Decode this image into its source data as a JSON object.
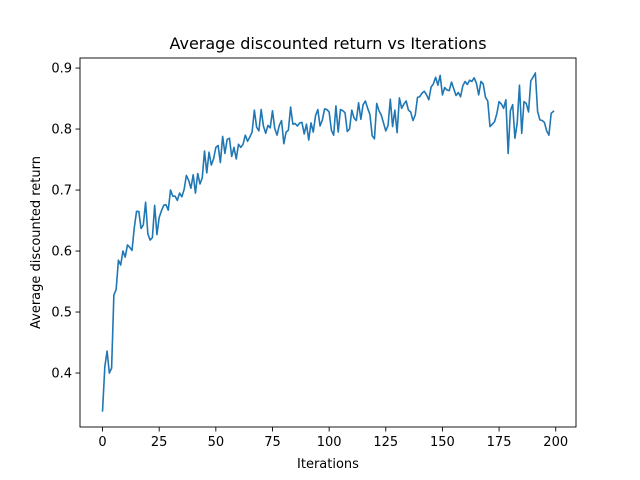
{
  "chart_data": {
    "type": "line",
    "title": "Average discounted return vs Iterations",
    "xlabel": "Iterations",
    "ylabel": "Average discounted return",
    "xlim": [
      -9.95,
      208.95
    ],
    "ylim": [
      0.3115,
      0.9165
    ],
    "xticks": [
      0,
      25,
      50,
      75,
      100,
      125,
      150,
      175,
      200
    ],
    "yticks": [
      0.4,
      0.5,
      0.6,
      0.7,
      0.8,
      0.9
    ],
    "ytick_labels": [
      "0.4",
      "0.5",
      "0.6",
      "0.7",
      "0.8",
      "0.9"
    ],
    "grid": false,
    "series": [
      {
        "color": "#1f77b4",
        "x_start": 0,
        "x_step": 1,
        "values": [
          0.338,
          0.41,
          0.436,
          0.4,
          0.408,
          0.528,
          0.537,
          0.585,
          0.577,
          0.6,
          0.59,
          0.61,
          0.606,
          0.601,
          0.638,
          0.665,
          0.665,
          0.637,
          0.643,
          0.68,
          0.628,
          0.618,
          0.622,
          0.675,
          0.627,
          0.655,
          0.666,
          0.675,
          0.676,
          0.667,
          0.7,
          0.69,
          0.69,
          0.683,
          0.695,
          0.689,
          0.701,
          0.724,
          0.716,
          0.703,
          0.725,
          0.695,
          0.727,
          0.71,
          0.72,
          0.764,
          0.728,
          0.762,
          0.741,
          0.751,
          0.77,
          0.773,
          0.745,
          0.788,
          0.76,
          0.783,
          0.785,
          0.755,
          0.77,
          0.751,
          0.775,
          0.77,
          0.775,
          0.79,
          0.78,
          0.787,
          0.795,
          0.831,
          0.803,
          0.797,
          0.832,
          0.805,
          0.793,
          0.806,
          0.802,
          0.83,
          0.801,
          0.79,
          0.806,
          0.814,
          0.776,
          0.795,
          0.798,
          0.836,
          0.808,
          0.809,
          0.805,
          0.81,
          0.811,
          0.792,
          0.808,
          0.782,
          0.81,
          0.795,
          0.822,
          0.832,
          0.805,
          0.815,
          0.833,
          0.832,
          0.828,
          0.798,
          0.79,
          0.838,
          0.795,
          0.832,
          0.83,
          0.827,
          0.796,
          0.8,
          0.831,
          0.818,
          0.814,
          0.843,
          0.816,
          0.84,
          0.846,
          0.834,
          0.824,
          0.789,
          0.784,
          0.842,
          0.83,
          0.823,
          0.81,
          0.797,
          0.806,
          0.849,
          0.804,
          0.831,
          0.794,
          0.851,
          0.834,
          0.841,
          0.846,
          0.831,
          0.828,
          0.814,
          0.823,
          0.852,
          0.853,
          0.859,
          0.862,
          0.856,
          0.848,
          0.869,
          0.874,
          0.885,
          0.872,
          0.888,
          0.856,
          0.868,
          0.864,
          0.863,
          0.877,
          0.866,
          0.855,
          0.86,
          0.853,
          0.871,
          0.878,
          0.873,
          0.88,
          0.878,
          0.884,
          0.875,
          0.856,
          0.878,
          0.874,
          0.852,
          0.846,
          0.804,
          0.808,
          0.812,
          0.825,
          0.845,
          0.841,
          0.834,
          0.848,
          0.76,
          0.83,
          0.84,
          0.785,
          0.81,
          0.872,
          0.793,
          0.845,
          0.842,
          0.828,
          0.879,
          0.885,
          0.892,
          0.829,
          0.815,
          0.814,
          0.811,
          0.797,
          0.79,
          0.826,
          0.829
        ]
      }
    ]
  }
}
